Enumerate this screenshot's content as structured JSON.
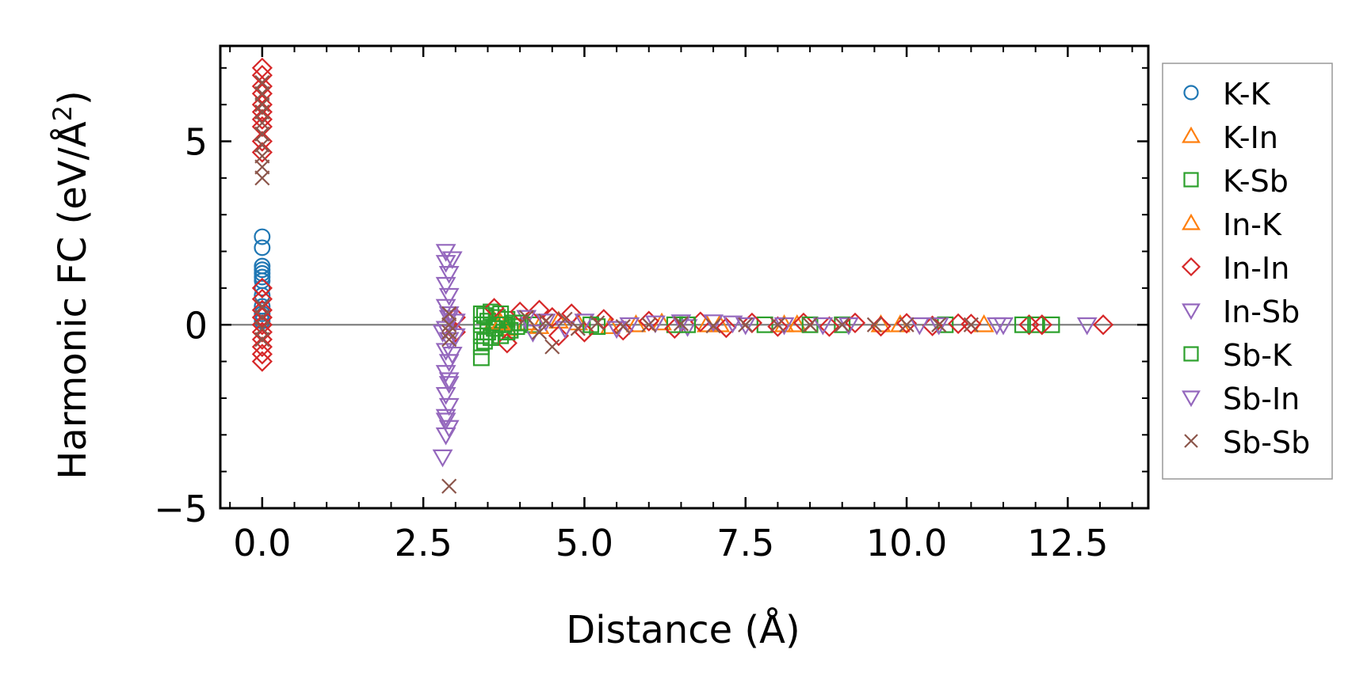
{
  "chart_data": {
    "type": "scatter",
    "title": "",
    "xlabel": "Distance (Å)",
    "ylabel_main": "Harmonic FC (eV/Å",
    "ylabel_sup": "2",
    "ylabel_close": ")",
    "xlim": [
      -0.65,
      13.75
    ],
    "ylim": [
      -5.0,
      7.6
    ],
    "xticks": [
      0.0,
      2.5,
      5.0,
      7.5,
      10.0,
      12.5
    ],
    "xtick_labels": [
      "0.0",
      "2.5",
      "5.0",
      "7.5",
      "10.0",
      "12.5"
    ],
    "yticks": [
      -5,
      0,
      5
    ],
    "ytick_labels": [
      "−5",
      "0",
      "5"
    ],
    "grid": false,
    "reference_line_y": 0,
    "legend_position": "outside-right",
    "series": [
      {
        "name": "K-K",
        "marker": "circle",
        "color": "#1f77b4",
        "points": [
          [
            0,
            2.4
          ],
          [
            0,
            2.1
          ],
          [
            0,
            1.6
          ],
          [
            0,
            1.5
          ],
          [
            0,
            1.4
          ],
          [
            0,
            1.3
          ],
          [
            0,
            1.2
          ],
          [
            0,
            1.0
          ],
          [
            0,
            0.8
          ],
          [
            0,
            0.5
          ],
          [
            0,
            0.3
          ],
          [
            0,
            0.1
          ]
        ]
      },
      {
        "name": "K-In",
        "marker": "triangle-up",
        "color": "#ff7f0e",
        "points": [
          [
            3.6,
            0.1
          ],
          [
            3.8,
            -0.1
          ],
          [
            4.1,
            0.05
          ],
          [
            4.6,
            0.1
          ],
          [
            5.4,
            -0.05
          ],
          [
            6.2,
            0.05
          ],
          [
            7.1,
            0.0
          ],
          [
            8.3,
            0.0
          ],
          [
            9.6,
            0.0
          ]
        ]
      },
      {
        "name": "K-Sb",
        "marker": "square",
        "color": "#2ca02c",
        "points": [
          [
            3.4,
            -0.9
          ],
          [
            3.4,
            -0.6
          ],
          [
            3.4,
            -0.3
          ],
          [
            3.4,
            0.0
          ],
          [
            3.4,
            0.3
          ],
          [
            3.45,
            -0.45
          ],
          [
            3.5,
            0.1
          ],
          [
            3.5,
            -0.2
          ],
          [
            3.55,
            0.35
          ],
          [
            3.6,
            -0.1
          ],
          [
            3.65,
            0.2
          ],
          [
            3.7,
            -0.3
          ],
          [
            3.75,
            0.0
          ],
          [
            3.8,
            0.15
          ],
          [
            3.85,
            -0.15
          ],
          [
            3.9,
            0.05
          ],
          [
            3.95,
            -0.05
          ],
          [
            4.2,
            0.0
          ],
          [
            5.2,
            -0.05
          ],
          [
            6.4,
            0.0
          ],
          [
            7.8,
            0.0
          ],
          [
            9.0,
            0.0
          ],
          [
            10.6,
            0.0
          ],
          [
            12.0,
            0.0
          ],
          [
            12.25,
            0.0
          ]
        ]
      },
      {
        "name": "In-K",
        "marker": "triangle-up",
        "color": "#ff7f0e",
        "points": [
          [
            3.7,
            0.05
          ],
          [
            4.3,
            -0.05
          ],
          [
            4.9,
            0.05
          ],
          [
            5.8,
            0.0
          ],
          [
            6.9,
            0.0
          ],
          [
            8.1,
            0.0
          ],
          [
            9.9,
            0.0
          ],
          [
            11.2,
            0.0
          ]
        ]
      },
      {
        "name": "In-In",
        "marker": "diamond",
        "color": "#d62728",
        "points": [
          [
            0,
            7.0
          ],
          [
            0,
            6.8
          ],
          [
            0,
            6.5
          ],
          [
            0,
            6.3
          ],
          [
            0,
            6.0
          ],
          [
            0,
            5.8
          ],
          [
            0,
            5.6
          ],
          [
            0,
            5.4
          ],
          [
            0,
            5.0
          ],
          [
            0,
            4.7
          ],
          [
            0,
            1.0
          ],
          [
            0,
            0.7
          ],
          [
            0,
            0.4
          ],
          [
            0,
            0.2
          ],
          [
            0,
            0.0
          ],
          [
            0,
            -0.2
          ],
          [
            0,
            -0.4
          ],
          [
            0,
            -0.6
          ],
          [
            0,
            -0.8
          ],
          [
            0,
            -1.0
          ],
          [
            3.0,
            0.2
          ],
          [
            3.0,
            -0.2
          ],
          [
            3.6,
            0.45
          ],
          [
            3.8,
            -0.5
          ],
          [
            4.0,
            0.35
          ],
          [
            4.3,
            0.4
          ],
          [
            4.5,
            0.2
          ],
          [
            4.6,
            -0.3
          ],
          [
            4.8,
            0.3
          ],
          [
            5.0,
            -0.2
          ],
          [
            5.3,
            0.15
          ],
          [
            5.6,
            -0.15
          ],
          [
            6.0,
            0.1
          ],
          [
            6.4,
            -0.1
          ],
          [
            6.8,
            0.08
          ],
          [
            7.2,
            -0.08
          ],
          [
            7.6,
            0.05
          ],
          [
            8.0,
            -0.05
          ],
          [
            8.4,
            0.05
          ],
          [
            8.8,
            -0.05
          ],
          [
            9.2,
            0.05
          ],
          [
            9.6,
            -0.04
          ],
          [
            10.0,
            0.04
          ],
          [
            10.4,
            -0.03
          ],
          [
            10.8,
            0.03
          ],
          [
            11.0,
            0.02
          ],
          [
            11.9,
            0.0
          ],
          [
            12.1,
            0.0
          ],
          [
            13.05,
            0.0
          ]
        ]
      },
      {
        "name": "In-Sb",
        "marker": "triangle-down",
        "color": "#9467bd",
        "points": [
          [
            2.85,
            2.0
          ],
          [
            2.85,
            1.7
          ],
          [
            2.9,
            1.4
          ],
          [
            2.85,
            1.1
          ],
          [
            2.9,
            0.8
          ],
          [
            2.85,
            0.5
          ],
          [
            2.9,
            0.2
          ],
          [
            2.85,
            -0.1
          ],
          [
            2.9,
            -0.4
          ],
          [
            2.85,
            -0.7
          ],
          [
            2.9,
            -1.0
          ],
          [
            2.85,
            -1.3
          ],
          [
            2.9,
            -1.6
          ],
          [
            2.85,
            -1.9
          ],
          [
            2.9,
            -2.2
          ],
          [
            2.85,
            -2.5
          ],
          [
            2.9,
            -2.8
          ],
          [
            2.85,
            -3.0
          ],
          [
            2.8,
            -3.6
          ],
          [
            2.95,
            1.8
          ],
          [
            3.0,
            0.1
          ],
          [
            3.0,
            -0.3
          ],
          [
            4.1,
            0.2
          ],
          [
            4.2,
            -0.2
          ],
          [
            5.0,
            0.1
          ],
          [
            5.5,
            -0.1
          ],
          [
            6.1,
            0.05
          ],
          [
            6.6,
            -0.05
          ],
          [
            7.0,
            0.08
          ],
          [
            7.5,
            0.0
          ],
          [
            8.1,
            0.0
          ],
          [
            9.1,
            0.0
          ],
          [
            10.2,
            0.0
          ],
          [
            11.5,
            0.0
          ],
          [
            12.8,
            0.0
          ]
        ]
      },
      {
        "name": "Sb-K",
        "marker": "square",
        "color": "#2ca02c",
        "points": [
          [
            3.45,
            0.25
          ],
          [
            3.55,
            -0.35
          ],
          [
            3.65,
            0.0
          ],
          [
            3.7,
            0.3
          ],
          [
            3.8,
            -0.2
          ],
          [
            4.0,
            0.05
          ],
          [
            5.1,
            0.0
          ],
          [
            6.6,
            0.0
          ],
          [
            8.5,
            0.0
          ],
          [
            11.8,
            0.0
          ]
        ]
      },
      {
        "name": "Sb-In",
        "marker": "triangle-down",
        "color": "#9467bd",
        "points": [
          [
            2.8,
            -0.2
          ],
          [
            2.9,
            0.3
          ],
          [
            2.95,
            -0.8
          ],
          [
            2.9,
            -1.5
          ],
          [
            2.85,
            -2.6
          ],
          [
            4.4,
            0.1
          ],
          [
            4.7,
            -0.1
          ],
          [
            5.7,
            0.0
          ],
          [
            6.5,
            0.08
          ],
          [
            7.3,
            0.05
          ],
          [
            8.7,
            0.0
          ],
          [
            10.5,
            0.0
          ],
          [
            11.4,
            0.0
          ]
        ]
      },
      {
        "name": "Sb-Sb",
        "marker": "x",
        "color": "#8c564b",
        "points": [
          [
            0,
            6.6
          ],
          [
            0,
            6.3
          ],
          [
            0,
            6.0
          ],
          [
            0,
            5.8
          ],
          [
            0,
            5.5
          ],
          [
            0,
            5.2
          ],
          [
            0,
            4.9
          ],
          [
            0,
            4.6
          ],
          [
            0,
            4.3
          ],
          [
            0,
            4.0
          ],
          [
            0,
            0.5
          ],
          [
            0,
            0.2
          ],
          [
            0,
            -0.1
          ],
          [
            0,
            -0.4
          ],
          [
            2.9,
            0.3
          ],
          [
            2.9,
            0.0
          ],
          [
            2.9,
            -0.2
          ],
          [
            2.9,
            -0.4
          ],
          [
            2.9,
            -4.4
          ],
          [
            4.1,
            0.2
          ],
          [
            4.3,
            -0.2
          ],
          [
            4.4,
            0.1
          ],
          [
            4.5,
            -0.6
          ],
          [
            4.7,
            0.15
          ],
          [
            4.9,
            -0.1
          ],
          [
            5.2,
            0.05
          ],
          [
            5.6,
            -0.05
          ],
          [
            6.0,
            0.0
          ],
          [
            6.5,
            0.03
          ],
          [
            7.0,
            -0.03
          ],
          [
            7.5,
            0.0
          ],
          [
            8.0,
            0.0
          ],
          [
            8.5,
            0.0
          ],
          [
            9.0,
            0.0
          ],
          [
            9.5,
            0.0
          ],
          [
            10.0,
            0.0
          ],
          [
            10.5,
            0.0
          ],
          [
            11.0,
            0.0
          ]
        ]
      }
    ]
  }
}
